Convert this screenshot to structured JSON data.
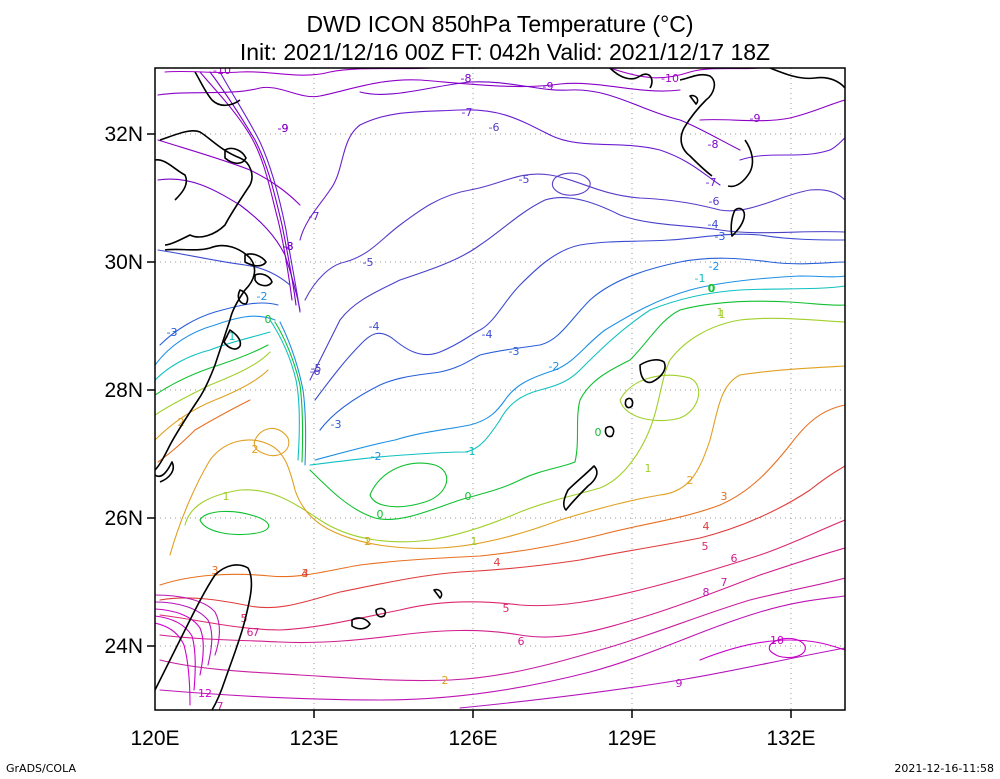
{
  "header": {
    "title_line1": "DWD ICON 850hPa Temperature (°C)",
    "title_line2": "Init: 2021/12/16 00Z  FT: 042h  Valid: 2021/12/17 18Z"
  },
  "axes": {
    "x_ticks": [
      "120E",
      "123E",
      "126E",
      "129E",
      "132E"
    ],
    "y_ticks": [
      "32N",
      "30N",
      "28N",
      "26N",
      "24N"
    ]
  },
  "footer": {
    "left": "GrADS/COLA",
    "right": "2021-12-16-11:58"
  },
  "colors": {
    "m10": "#a000c8",
    "m9": "#8c00c8",
    "m8": "#7800c8",
    "m7": "#6a1ed0",
    "m6": "#5a3cc8",
    "m5": "#4a40c8",
    "m4": "#3c4bd2",
    "m3": "#2860d8",
    "m2": "#1e90e6",
    "m1": "#10c0c0",
    "z0": "#10c030",
    "p1": "#a0d02a",
    "p2": "#e0a020",
    "p3": "#e87020",
    "p4": "#e03c3c",
    "p5": "#dc2870",
    "p6": "#d21e8c",
    "p7": "#c81ea0",
    "p8": "#be14b4",
    "p9": "#b414be",
    "p10": "#c800c8",
    "p12": "#d000d0"
  },
  "contour_labels": [
    {
      "text": "-10",
      "c": "m10"
    },
    {
      "text": "-9",
      "c": "m9"
    },
    {
      "text": "-8",
      "c": "m8"
    },
    {
      "text": "-7",
      "c": "m7"
    },
    {
      "text": "-6",
      "c": "m6"
    },
    {
      "text": "-5",
      "c": "m5"
    },
    {
      "text": "-8",
      "c": "m8"
    },
    {
      "text": "-9",
      "c": "m9"
    },
    {
      "text": "-10",
      "c": "m10"
    },
    {
      "text": "-9",
      "c": "m9"
    },
    {
      "text": "-8",
      "c": "m8"
    },
    {
      "text": "-7",
      "c": "m7"
    },
    {
      "text": "-6",
      "c": "m6"
    },
    {
      "text": "-5",
      "c": "m5"
    },
    {
      "text": "-4",
      "c": "m4"
    },
    {
      "text": "-3",
      "c": "m3"
    },
    {
      "text": "-2",
      "c": "m2"
    },
    {
      "text": "-1",
      "c": "m1"
    },
    {
      "text": "0",
      "c": "z0"
    },
    {
      "text": "1",
      "c": "p1"
    },
    {
      "text": "-9",
      "c": "m9"
    },
    {
      "text": "-8",
      "c": "m8"
    },
    {
      "text": "-7",
      "c": "m7"
    },
    {
      "text": "-6",
      "c": "m6"
    },
    {
      "text": "-4",
      "c": "m4"
    },
    {
      "text": "-4",
      "c": "m4"
    },
    {
      "text": "-3",
      "c": "m3"
    },
    {
      "text": "-2",
      "c": "m2"
    },
    {
      "text": "-5",
      "c": "m5"
    },
    {
      "text": "-3",
      "c": "m3"
    },
    {
      "text": "-2",
      "c": "m2"
    },
    {
      "text": "-1",
      "c": "m1"
    },
    {
      "text": "0",
      "c": "z0"
    },
    {
      "text": "0",
      "c": "z0"
    },
    {
      "text": "-3",
      "c": "m3"
    },
    {
      "text": "-2",
      "c": "m2"
    },
    {
      "text": "-1",
      "c": "m1"
    },
    {
      "text": "0",
      "c": "z0"
    },
    {
      "text": "0",
      "c": "z0"
    },
    {
      "text": "1",
      "c": "p1"
    },
    {
      "text": "1",
      "c": "p1"
    },
    {
      "text": "1",
      "c": "p1"
    },
    {
      "text": "2",
      "c": "p2"
    },
    {
      "text": "2",
      "c": "p2"
    },
    {
      "text": "1",
      "c": "p1"
    },
    {
      "text": "0",
      "c": "z0"
    },
    {
      "text": "2",
      "c": "p2"
    },
    {
      "text": "3",
      "c": "p3"
    },
    {
      "text": "4",
      "c": "p4"
    },
    {
      "text": "5",
      "c": "p5"
    },
    {
      "text": "6",
      "c": "p6"
    },
    {
      "text": "7",
      "c": "p7"
    },
    {
      "text": "8",
      "c": "p8"
    },
    {
      "text": "10",
      "c": "p10"
    },
    {
      "text": "9",
      "c": "p9"
    },
    {
      "text": "3",
      "c": "p3"
    },
    {
      "text": "4",
      "c": "p4"
    },
    {
      "text": "5",
      "c": "p5"
    },
    {
      "text": "6",
      "c": "p6"
    },
    {
      "text": "7",
      "c": "p7"
    },
    {
      "text": "2",
      "c": "p2"
    },
    {
      "text": "1",
      "c": "p1"
    },
    {
      "text": "2",
      "c": "p2"
    },
    {
      "text": "3",
      "c": "p3"
    },
    {
      "text": "4",
      "c": "p4"
    },
    {
      "text": "5",
      "c": "p5"
    },
    {
      "text": "6",
      "c": "p6"
    },
    {
      "text": "12",
      "c": "p12"
    },
    {
      "text": "7",
      "c": "p7"
    }
  ]
}
